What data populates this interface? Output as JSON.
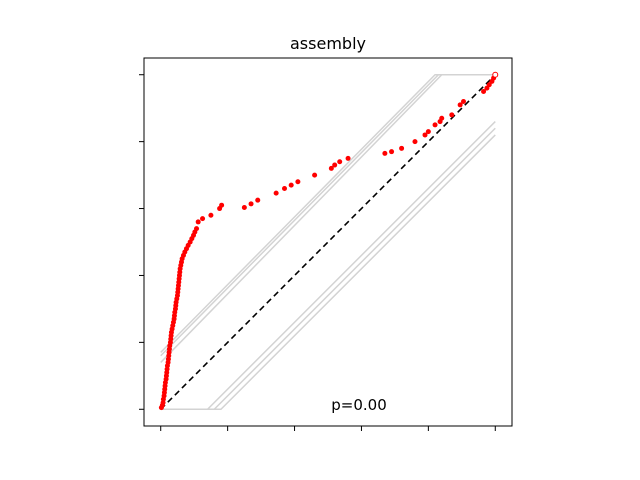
{
  "chart_data": {
    "type": "scatter",
    "title": "assembly",
    "annotation": "p=0.00",
    "xlabel": "",
    "ylabel": "",
    "xlim": [
      -0.05,
      1.05
    ],
    "ylim": [
      -0.05,
      1.05
    ],
    "tick_values": [
      0,
      0.2,
      0.4,
      0.6,
      0.8,
      1.0
    ],
    "tick_labels_visible": false,
    "grid": false,
    "colors": {
      "points": "#ff0000",
      "diagonal": "#000000",
      "bands": "#d3d3d3",
      "frame": "#000000"
    },
    "reference_line": {
      "style": "dashed",
      "points": [
        [
          0,
          0
        ],
        [
          1,
          1
        ]
      ]
    },
    "confidence_bands": [
      [
        [
          0.0,
          0.17
        ],
        [
          0.82,
          1.0
        ],
        [
          1.0,
          1.0
        ]
      ],
      [
        [
          0.0,
          0.16
        ],
        [
          0.83,
          1.0
        ],
        [
          1.0,
          1.0
        ]
      ],
      [
        [
          0.0,
          0.14
        ],
        [
          0.84,
          1.0
        ],
        [
          1.0,
          1.0
        ]
      ],
      [
        [
          0.0,
          0.0
        ],
        [
          0.14,
          0.0
        ],
        [
          1.0,
          0.86
        ]
      ],
      [
        [
          0.0,
          0.0
        ],
        [
          0.16,
          0.0
        ],
        [
          1.0,
          0.84
        ]
      ],
      [
        [
          0.0,
          0.0
        ],
        [
          0.18,
          0.0
        ],
        [
          1.0,
          0.82
        ]
      ]
    ],
    "points": [
      [
        0.002,
        0.005
      ],
      [
        0.005,
        0.012
      ],
      [
        0.007,
        0.02
      ],
      [
        0.008,
        0.03
      ],
      [
        0.01,
        0.04
      ],
      [
        0.011,
        0.05
      ],
      [
        0.012,
        0.06
      ],
      [
        0.013,
        0.07
      ],
      [
        0.014,
        0.08
      ],
      [
        0.016,
        0.09
      ],
      [
        0.017,
        0.1
      ],
      [
        0.018,
        0.11
      ],
      [
        0.019,
        0.12
      ],
      [
        0.02,
        0.13
      ],
      [
        0.022,
        0.14
      ],
      [
        0.023,
        0.15
      ],
      [
        0.024,
        0.16
      ],
      [
        0.025,
        0.17
      ],
      [
        0.026,
        0.18
      ],
      [
        0.027,
        0.19
      ],
      [
        0.029,
        0.2
      ],
      [
        0.03,
        0.21
      ],
      [
        0.031,
        0.22
      ],
      [
        0.032,
        0.23
      ],
      [
        0.034,
        0.24
      ],
      [
        0.036,
        0.25
      ],
      [
        0.038,
        0.26
      ],
      [
        0.04,
        0.27
      ],
      [
        0.041,
        0.28
      ],
      [
        0.042,
        0.29
      ],
      [
        0.044,
        0.3
      ],
      [
        0.045,
        0.31
      ],
      [
        0.046,
        0.32
      ],
      [
        0.048,
        0.33
      ],
      [
        0.05,
        0.34
      ],
      [
        0.051,
        0.35
      ],
      [
        0.052,
        0.36
      ],
      [
        0.053,
        0.37
      ],
      [
        0.054,
        0.38
      ],
      [
        0.055,
        0.39
      ],
      [
        0.056,
        0.4
      ],
      [
        0.057,
        0.41
      ],
      [
        0.058,
        0.42
      ],
      [
        0.06,
        0.43
      ],
      [
        0.062,
        0.44
      ],
      [
        0.064,
        0.45
      ],
      [
        0.068,
        0.46
      ],
      [
        0.072,
        0.47
      ],
      [
        0.077,
        0.48
      ],
      [
        0.082,
        0.49
      ],
      [
        0.088,
        0.5
      ],
      [
        0.093,
        0.51
      ],
      [
        0.098,
        0.52
      ],
      [
        0.102,
        0.53
      ],
      [
        0.107,
        0.54
      ],
      [
        0.112,
        0.56
      ],
      [
        0.125,
        0.57
      ],
      [
        0.15,
        0.58
      ],
      [
        0.176,
        0.6
      ],
      [
        0.182,
        0.61
      ],
      [
        0.25,
        0.603
      ],
      [
        0.27,
        0.614
      ],
      [
        0.29,
        0.625
      ],
      [
        0.345,
        0.646
      ],
      [
        0.37,
        0.66
      ],
      [
        0.39,
        0.67
      ],
      [
        0.41,
        0.68
      ],
      [
        0.46,
        0.7
      ],
      [
        0.51,
        0.72
      ],
      [
        0.52,
        0.73
      ],
      [
        0.535,
        0.74
      ],
      [
        0.56,
        0.75
      ],
      [
        0.67,
        0.765
      ],
      [
        0.69,
        0.77
      ],
      [
        0.72,
        0.78
      ],
      [
        0.76,
        0.8
      ],
      [
        0.79,
        0.82
      ],
      [
        0.8,
        0.83
      ],
      [
        0.82,
        0.85
      ],
      [
        0.835,
        0.86
      ],
      [
        0.84,
        0.87
      ],
      [
        0.87,
        0.88
      ],
      [
        0.895,
        0.91
      ],
      [
        0.905,
        0.92
      ],
      [
        0.965,
        0.95
      ],
      [
        0.975,
        0.96
      ],
      [
        0.982,
        0.97
      ],
      [
        0.99,
        0.98
      ],
      [
        0.995,
        0.99
      ],
      [
        1.0,
        1.0
      ]
    ]
  }
}
